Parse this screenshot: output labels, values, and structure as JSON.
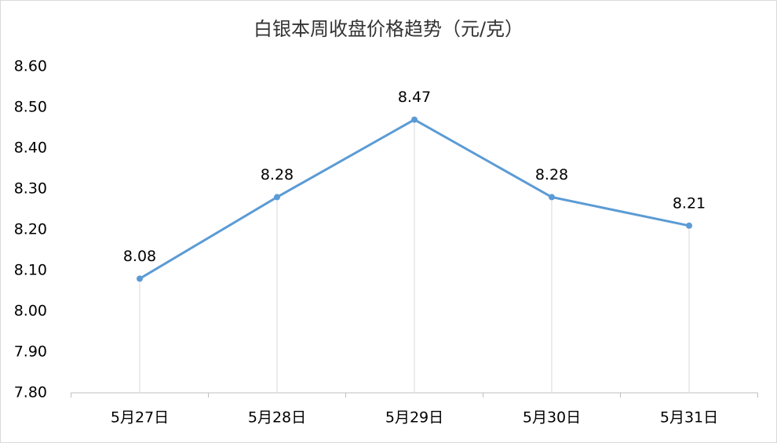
{
  "chart_data": {
    "type": "line",
    "title": "白银本周收盘价格趋势（元/克）",
    "categories": [
      "5月27日",
      "5月28日",
      "5月29日",
      "5月30日",
      "5月31日"
    ],
    "series": [
      {
        "color": "#5b9bd5",
        "values": [
          8.08,
          8.28,
          8.47,
          8.28,
          8.21
        ]
      }
    ],
    "ylim": [
      7.8,
      8.6
    ],
    "yticks": [
      {
        "value": 7.8,
        "label": "7.80"
      },
      {
        "value": 7.9,
        "label": "7.90"
      },
      {
        "value": 8.0,
        "label": "8.00"
      },
      {
        "value": 8.1,
        "label": "8.10"
      },
      {
        "value": 8.2,
        "label": "8.20"
      },
      {
        "value": 8.3,
        "label": "8.30"
      },
      {
        "value": 8.4,
        "label": "8.40"
      },
      {
        "value": 8.5,
        "label": "8.50"
      },
      {
        "value": 8.6,
        "label": "8.60"
      }
    ],
    "drop_lines": true
  }
}
